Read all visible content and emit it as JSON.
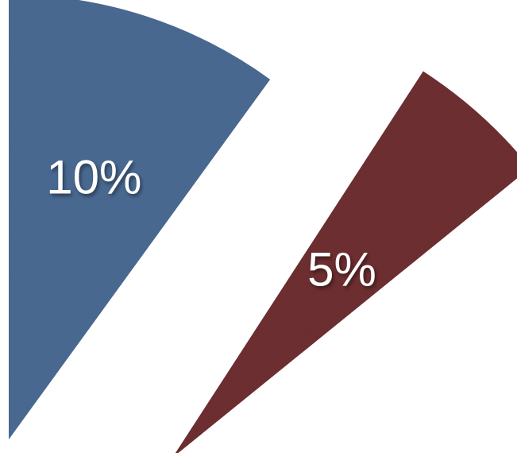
{
  "chart_data": {
    "type": "pie",
    "categories": [
      "",
      ""
    ],
    "values": [
      10,
      5
    ],
    "labels": [
      "10%",
      "5%"
    ],
    "colors": [
      "#4a6a93",
      "#6e2e31"
    ],
    "exploded": true,
    "title": "",
    "legend": "none"
  }
}
